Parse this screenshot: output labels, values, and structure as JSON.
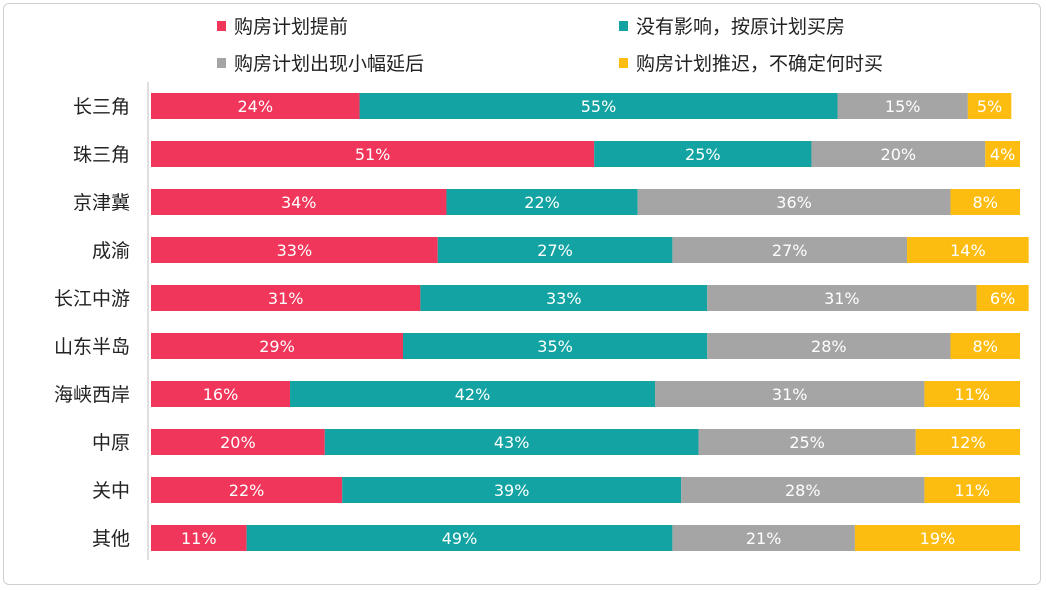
{
  "chart_data": {
    "type": "bar",
    "orientation": "horizontal",
    "stacked": true,
    "value_unit": "%",
    "legend_placement": "top",
    "grid": false,
    "xlim": [
      0,
      100
    ],
    "categories": [
      "长三角",
      "珠三角",
      "京津冀",
      "成渝",
      "长江中游",
      "山东半岛",
      "海峡西岸",
      "中原",
      "关中",
      "其他"
    ],
    "series": [
      {
        "name": "购房计划提前",
        "color": "#f0365a",
        "values": [
          24,
          51,
          34,
          33,
          31,
          29,
          16,
          20,
          22,
          11
        ]
      },
      {
        "name": "没有影响，按原计划买房",
        "color": "#13a3a3",
        "values": [
          55,
          25,
          22,
          27,
          33,
          35,
          42,
          43,
          39,
          49
        ]
      },
      {
        "name": "购房计划出现小幅延后",
        "color": "#a5a5a5",
        "values": [
          15,
          20,
          36,
          27,
          31,
          28,
          31,
          25,
          28,
          21
        ]
      },
      {
        "name": "购房计划推迟，不确定何时买",
        "color": "#fdbd10",
        "values": [
          5,
          4,
          8,
          14,
          6,
          8,
          11,
          12,
          11,
          19
        ]
      }
    ]
  }
}
